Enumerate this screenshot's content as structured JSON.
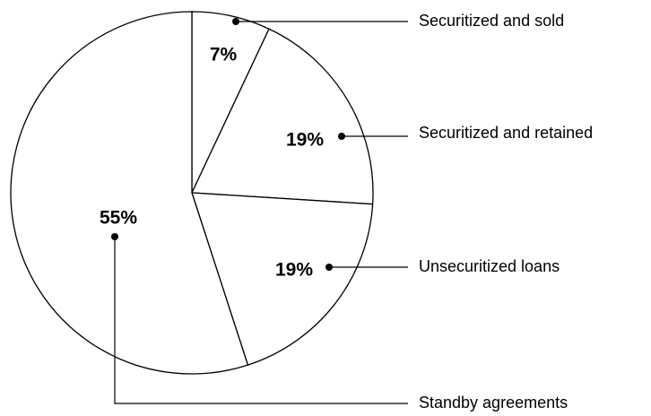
{
  "chart_data": {
    "type": "pie",
    "categories": [
      "Securitized and sold",
      "Securitized and retained",
      "Unsecuritized loans",
      "Standby agreements"
    ],
    "values": [
      7,
      19,
      19,
      55
    ],
    "value_labels": [
      "7%",
      "19%",
      "19%",
      "55%"
    ],
    "color": "#ffffff"
  }
}
